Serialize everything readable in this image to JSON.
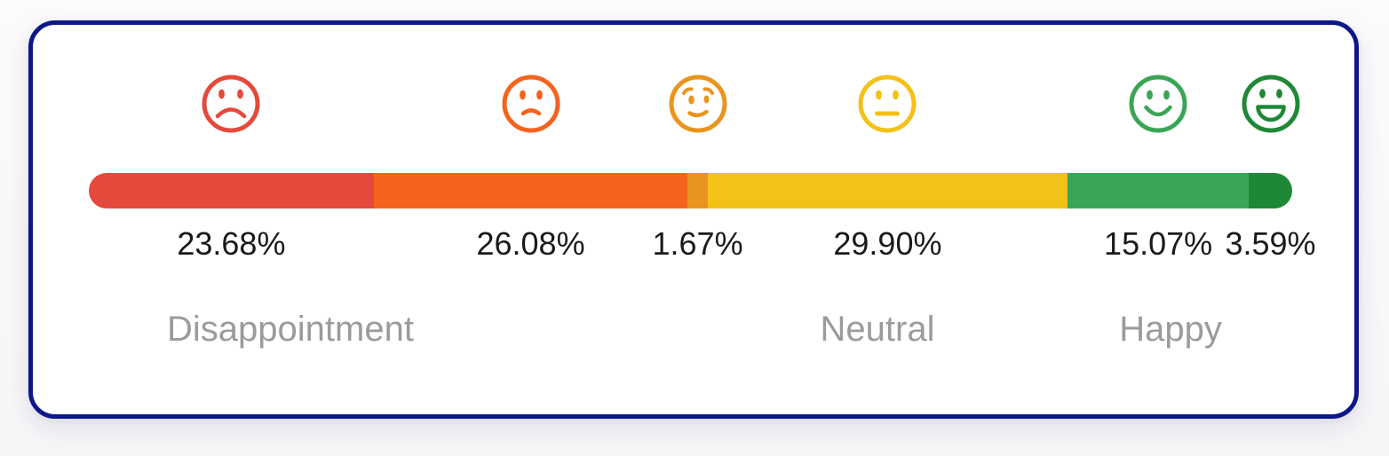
{
  "card": {
    "border_color": "#0c1789",
    "background": "#ffffff"
  },
  "chart_data": {
    "type": "bar",
    "orientation": "horizontal-stacked",
    "title": "",
    "categories": [
      "very-unhappy",
      "unhappy",
      "slightly-happy",
      "neutral",
      "happy",
      "very-happy"
    ],
    "values": [
      23.68,
      26.08,
      1.67,
      29.9,
      15.07,
      3.59
    ],
    "value_labels": [
      "23.68%",
      "26.08%",
      "1.67%",
      "29.90%",
      "15.07%",
      "3.59%"
    ],
    "colors": [
      "#e5493c",
      "#f4631e",
      "#e9941e",
      "#f3c118",
      "#3aa655",
      "#1e8836"
    ],
    "icons": [
      "sad-face-icon",
      "frown-face-icon",
      "slight-smile-face-icon",
      "neutral-face-icon",
      "smile-face-icon",
      "grin-face-icon"
    ],
    "group_labels": [
      "Disappointment",
      "Neutral",
      "Happy"
    ],
    "group_label_color": "#9b9b9b",
    "xlim": [
      0,
      100
    ],
    "legend": "none",
    "grid": false
  }
}
